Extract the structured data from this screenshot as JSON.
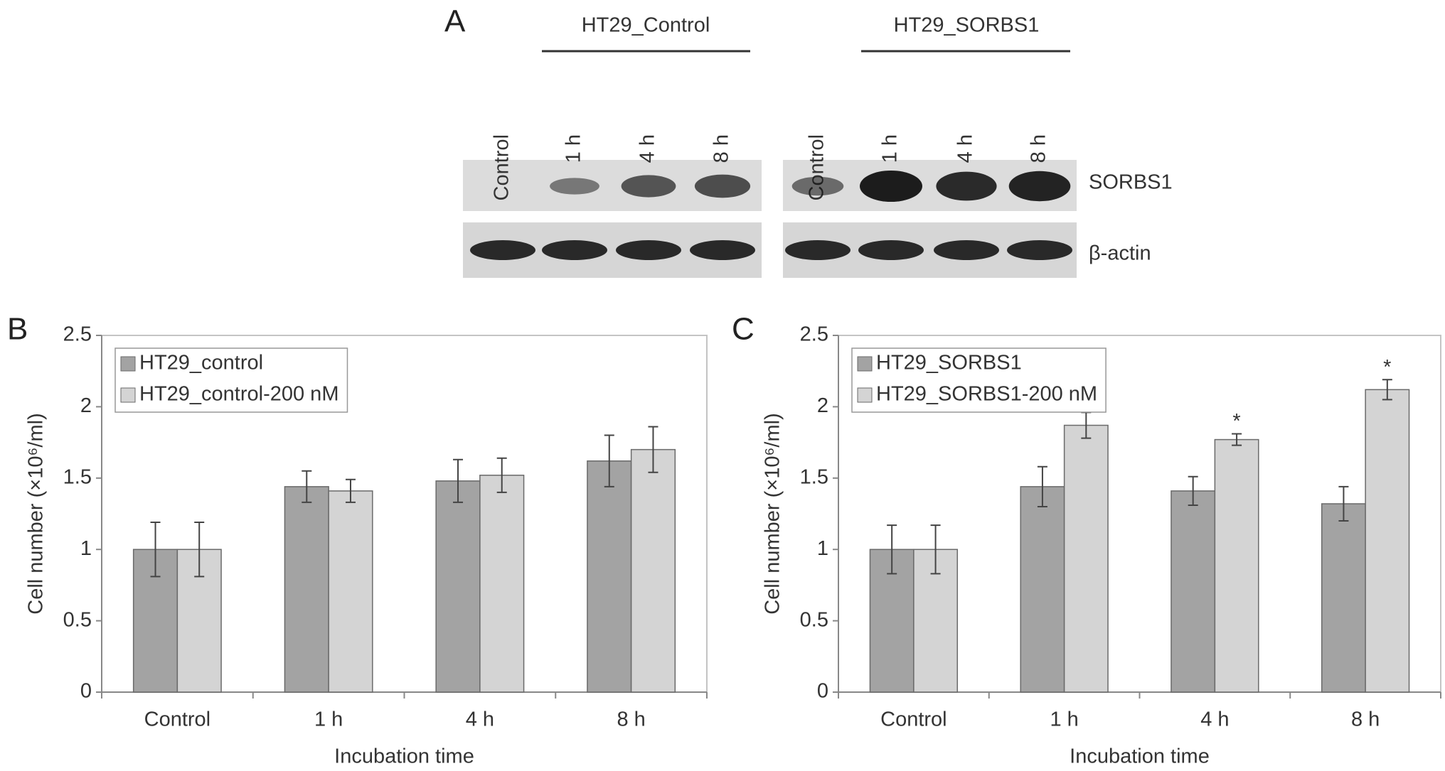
{
  "blot": {
    "panel_label": "A",
    "groups": [
      {
        "name": "HT29_Control",
        "lanes": [
          "Control",
          "1 h",
          "4 h",
          "8 h"
        ]
      },
      {
        "name": "HT29_SORBS1",
        "lanes": [
          "Control",
          "1 h",
          "4 h",
          "8 h"
        ]
      }
    ],
    "rows": [
      "SORBS1",
      "β-actin"
    ]
  },
  "chart_data": [
    {
      "type": "bar",
      "panel_label": "B",
      "categories": [
        "Control",
        "1 h",
        "4 h",
        "8 h"
      ],
      "series": [
        {
          "name": "HT29_control",
          "color": "#a3a3a3",
          "values": [
            1.0,
            1.44,
            1.48,
            1.62
          ],
          "errors": [
            0.19,
            0.11,
            0.15,
            0.18
          ]
        },
        {
          "name": "HT29_control-200 nM",
          "color": "#d4d4d4",
          "values": [
            1.0,
            1.41,
            1.52,
            1.7
          ],
          "errors": [
            0.19,
            0.08,
            0.12,
            0.16
          ]
        }
      ],
      "ylim": [
        0,
        2.5
      ],
      "yticks": [
        0,
        0.5,
        1,
        1.5,
        2,
        2.5
      ],
      "ylabel": "Cell number (×10⁶/ml)",
      "xlabel": "Incubation time",
      "legend": "upper left",
      "grid": false
    },
    {
      "type": "bar",
      "panel_label": "C",
      "categories": [
        "Control",
        "1 h",
        "4 h",
        "8 h"
      ],
      "series": [
        {
          "name": "HT29_SORBS1",
          "color": "#a3a3a3",
          "values": [
            1.0,
            1.44,
            1.41,
            1.32
          ],
          "errors": [
            0.17,
            0.14,
            0.1,
            0.12
          ]
        },
        {
          "name": "HT29_SORBS1-200 nM",
          "color": "#d4d4d4",
          "values": [
            1.0,
            1.87,
            1.77,
            2.12
          ],
          "errors": [
            0.17,
            0.09,
            0.04,
            0.07
          ],
          "significance": [
            null,
            null,
            "*",
            "*"
          ]
        }
      ],
      "ylim": [
        0,
        2.5
      ],
      "yticks": [
        0,
        0.5,
        1,
        1.5,
        2,
        2.5
      ],
      "ylabel": "Cell number (×10⁶/ml)",
      "xlabel": "Incubation time",
      "legend": "upper left",
      "grid": false
    }
  ]
}
